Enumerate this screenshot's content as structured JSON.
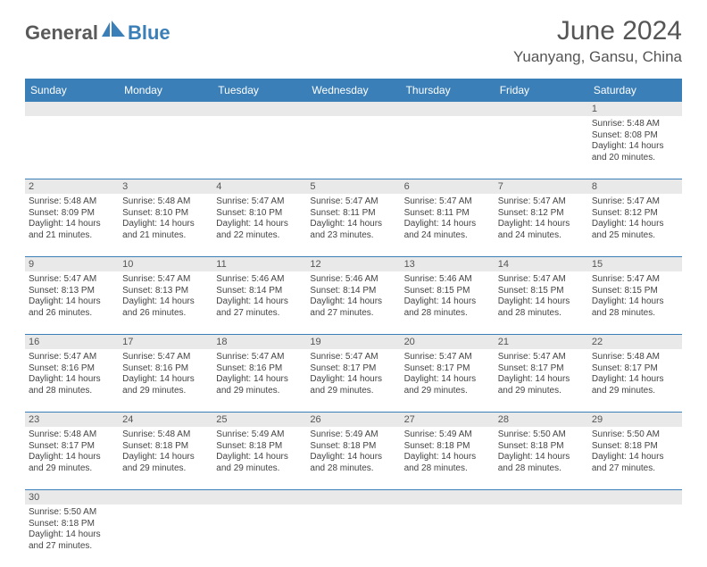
{
  "logo": {
    "textA": "General",
    "textB": "Blue"
  },
  "title": "June 2024",
  "location": "Yuanyang, Gansu, China",
  "colors": {
    "header_bg": "#3b7fb8",
    "header_text": "#ffffff",
    "daynum_bg": "#e9e9e9",
    "row_border": "#3b7fb8",
    "body_text": "#444444",
    "title_text": "#555555",
    "logo_gray": "#5a5a5a",
    "logo_blue": "#3b7fb8"
  },
  "day_headers": [
    "Sunday",
    "Monday",
    "Tuesday",
    "Wednesday",
    "Thursday",
    "Friday",
    "Saturday"
  ],
  "weeks": [
    {
      "nums": [
        "",
        "",
        "",
        "",
        "",
        "",
        "1"
      ],
      "cells": [
        null,
        null,
        null,
        null,
        null,
        null,
        {
          "sr": "Sunrise: 5:48 AM",
          "ss": "Sunset: 8:08 PM",
          "d1": "Daylight: 14 hours",
          "d2": "and 20 minutes."
        }
      ]
    },
    {
      "nums": [
        "2",
        "3",
        "4",
        "5",
        "6",
        "7",
        "8"
      ],
      "cells": [
        {
          "sr": "Sunrise: 5:48 AM",
          "ss": "Sunset: 8:09 PM",
          "d1": "Daylight: 14 hours",
          "d2": "and 21 minutes."
        },
        {
          "sr": "Sunrise: 5:48 AM",
          "ss": "Sunset: 8:10 PM",
          "d1": "Daylight: 14 hours",
          "d2": "and 21 minutes."
        },
        {
          "sr": "Sunrise: 5:47 AM",
          "ss": "Sunset: 8:10 PM",
          "d1": "Daylight: 14 hours",
          "d2": "and 22 minutes."
        },
        {
          "sr": "Sunrise: 5:47 AM",
          "ss": "Sunset: 8:11 PM",
          "d1": "Daylight: 14 hours",
          "d2": "and 23 minutes."
        },
        {
          "sr": "Sunrise: 5:47 AM",
          "ss": "Sunset: 8:11 PM",
          "d1": "Daylight: 14 hours",
          "d2": "and 24 minutes."
        },
        {
          "sr": "Sunrise: 5:47 AM",
          "ss": "Sunset: 8:12 PM",
          "d1": "Daylight: 14 hours",
          "d2": "and 24 minutes."
        },
        {
          "sr": "Sunrise: 5:47 AM",
          "ss": "Sunset: 8:12 PM",
          "d1": "Daylight: 14 hours",
          "d2": "and 25 minutes."
        }
      ]
    },
    {
      "nums": [
        "9",
        "10",
        "11",
        "12",
        "13",
        "14",
        "15"
      ],
      "cells": [
        {
          "sr": "Sunrise: 5:47 AM",
          "ss": "Sunset: 8:13 PM",
          "d1": "Daylight: 14 hours",
          "d2": "and 26 minutes."
        },
        {
          "sr": "Sunrise: 5:47 AM",
          "ss": "Sunset: 8:13 PM",
          "d1": "Daylight: 14 hours",
          "d2": "and 26 minutes."
        },
        {
          "sr": "Sunrise: 5:46 AM",
          "ss": "Sunset: 8:14 PM",
          "d1": "Daylight: 14 hours",
          "d2": "and 27 minutes."
        },
        {
          "sr": "Sunrise: 5:46 AM",
          "ss": "Sunset: 8:14 PM",
          "d1": "Daylight: 14 hours",
          "d2": "and 27 minutes."
        },
        {
          "sr": "Sunrise: 5:46 AM",
          "ss": "Sunset: 8:15 PM",
          "d1": "Daylight: 14 hours",
          "d2": "and 28 minutes."
        },
        {
          "sr": "Sunrise: 5:47 AM",
          "ss": "Sunset: 8:15 PM",
          "d1": "Daylight: 14 hours",
          "d2": "and 28 minutes."
        },
        {
          "sr": "Sunrise: 5:47 AM",
          "ss": "Sunset: 8:15 PM",
          "d1": "Daylight: 14 hours",
          "d2": "and 28 minutes."
        }
      ]
    },
    {
      "nums": [
        "16",
        "17",
        "18",
        "19",
        "20",
        "21",
        "22"
      ],
      "cells": [
        {
          "sr": "Sunrise: 5:47 AM",
          "ss": "Sunset: 8:16 PM",
          "d1": "Daylight: 14 hours",
          "d2": "and 28 minutes."
        },
        {
          "sr": "Sunrise: 5:47 AM",
          "ss": "Sunset: 8:16 PM",
          "d1": "Daylight: 14 hours",
          "d2": "and 29 minutes."
        },
        {
          "sr": "Sunrise: 5:47 AM",
          "ss": "Sunset: 8:16 PM",
          "d1": "Daylight: 14 hours",
          "d2": "and 29 minutes."
        },
        {
          "sr": "Sunrise: 5:47 AM",
          "ss": "Sunset: 8:17 PM",
          "d1": "Daylight: 14 hours",
          "d2": "and 29 minutes."
        },
        {
          "sr": "Sunrise: 5:47 AM",
          "ss": "Sunset: 8:17 PM",
          "d1": "Daylight: 14 hours",
          "d2": "and 29 minutes."
        },
        {
          "sr": "Sunrise: 5:47 AM",
          "ss": "Sunset: 8:17 PM",
          "d1": "Daylight: 14 hours",
          "d2": "and 29 minutes."
        },
        {
          "sr": "Sunrise: 5:48 AM",
          "ss": "Sunset: 8:17 PM",
          "d1": "Daylight: 14 hours",
          "d2": "and 29 minutes."
        }
      ]
    },
    {
      "nums": [
        "23",
        "24",
        "25",
        "26",
        "27",
        "28",
        "29"
      ],
      "cells": [
        {
          "sr": "Sunrise: 5:48 AM",
          "ss": "Sunset: 8:17 PM",
          "d1": "Daylight: 14 hours",
          "d2": "and 29 minutes."
        },
        {
          "sr": "Sunrise: 5:48 AM",
          "ss": "Sunset: 8:18 PM",
          "d1": "Daylight: 14 hours",
          "d2": "and 29 minutes."
        },
        {
          "sr": "Sunrise: 5:49 AM",
          "ss": "Sunset: 8:18 PM",
          "d1": "Daylight: 14 hours",
          "d2": "and 29 minutes."
        },
        {
          "sr": "Sunrise: 5:49 AM",
          "ss": "Sunset: 8:18 PM",
          "d1": "Daylight: 14 hours",
          "d2": "and 28 minutes."
        },
        {
          "sr": "Sunrise: 5:49 AM",
          "ss": "Sunset: 8:18 PM",
          "d1": "Daylight: 14 hours",
          "d2": "and 28 minutes."
        },
        {
          "sr": "Sunrise: 5:50 AM",
          "ss": "Sunset: 8:18 PM",
          "d1": "Daylight: 14 hours",
          "d2": "and 28 minutes."
        },
        {
          "sr": "Sunrise: 5:50 AM",
          "ss": "Sunset: 8:18 PM",
          "d1": "Daylight: 14 hours",
          "d2": "and 27 minutes."
        }
      ]
    },
    {
      "nums": [
        "30",
        "",
        "",
        "",
        "",
        "",
        ""
      ],
      "cells": [
        {
          "sr": "Sunrise: 5:50 AM",
          "ss": "Sunset: 8:18 PM",
          "d1": "Daylight: 14 hours",
          "d2": "and 27 minutes."
        },
        null,
        null,
        null,
        null,
        null,
        null
      ]
    }
  ]
}
